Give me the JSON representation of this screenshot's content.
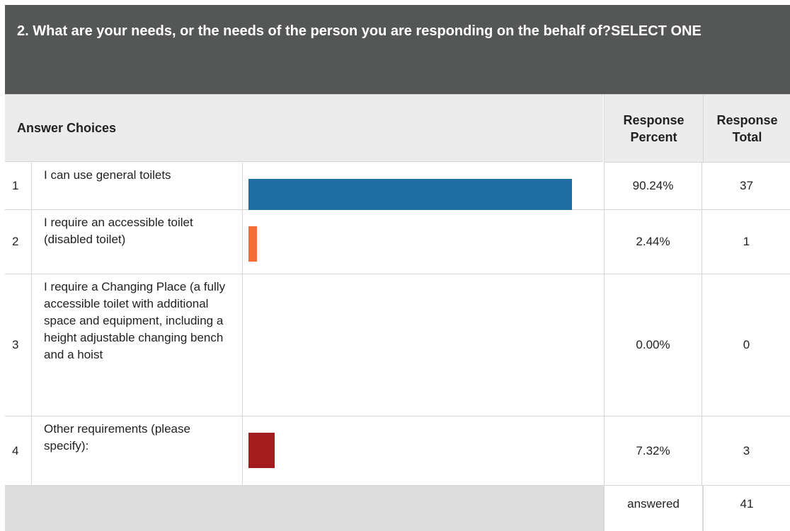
{
  "question": {
    "title": "2. What are your needs, or the needs of the person you are responding on the behalf of?SELECT ONE"
  },
  "columns": {
    "answer": "Answer Choices",
    "percent": "Response Percent",
    "total": "Response Total"
  },
  "rows": [
    {
      "num": "1",
      "label": "I can use general toilets",
      "percent": "90.24%",
      "total": "37",
      "color": "#1f6fa5"
    },
    {
      "num": "2",
      "label": "I require an accessible toilet (disabled toilet)",
      "percent": "2.44%",
      "total": "1",
      "color": "#f26c36"
    },
    {
      "num": "3",
      "label": "I require a Changing Place (a fully accessible toilet with additional space and equipment, including a height adjustable changing bench and a hoist",
      "percent": "0.00%",
      "total": "0",
      "color": "#7f7f7f"
    },
    {
      "num": "4",
      "label": "Other requirements (please specify):",
      "percent": "7.32%",
      "total": "3",
      "color": "#a51c1f"
    }
  ],
  "footer": {
    "label": "answered",
    "total": "41"
  },
  "chart_data": {
    "type": "bar",
    "categories": [
      "I can use general toilets",
      "I require an accessible toilet (disabled toilet)",
      "I require a Changing Place (a fully accessible toilet with additional space and equipment, including a height adjustable changing bench and a hoist",
      "Other requirements (please specify):"
    ],
    "values": [
      90.24,
      2.44,
      0.0,
      7.32
    ],
    "totals": [
      37,
      1,
      0,
      3
    ],
    "colors": [
      "#1f6fa5",
      "#f26c36",
      "#7f7f7f",
      "#a51c1f"
    ],
    "orientation": "horizontal",
    "xlim": [
      0,
      100
    ]
  }
}
